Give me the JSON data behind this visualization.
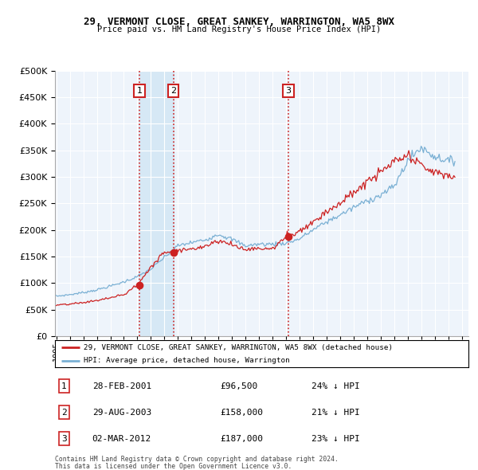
{
  "title": "29, VERMONT CLOSE, GREAT SANKEY, WARRINGTON, WA5 8WX",
  "subtitle": "Price paid vs. HM Land Registry's House Price Index (HPI)",
  "legend_line1": "29, VERMONT CLOSE, GREAT SANKEY, WARRINGTON, WA5 8WX (detached house)",
  "legend_line2": "HPI: Average price, detached house, Warrington",
  "footer1": "Contains HM Land Registry data © Crown copyright and database right 2024.",
  "footer2": "This data is licensed under the Open Government Licence v3.0.",
  "purchases": [
    {
      "num": 1,
      "date": "28-FEB-2001",
      "price": "£96,500",
      "year": 2001.16,
      "price_val": 96500,
      "pct": "24% ↓ HPI"
    },
    {
      "num": 2,
      "date": "29-AUG-2003",
      "price": "£158,000",
      "year": 2003.66,
      "price_val": 158000,
      "pct": "21% ↓ HPI"
    },
    {
      "num": 3,
      "date": "02-MAR-2012",
      "price": "£187,000",
      "year": 2012.17,
      "price_val": 187000,
      "pct": "23% ↓ HPI"
    }
  ],
  "hpi_color": "#7ab0d4",
  "price_color": "#cc2222",
  "vline_color": "#cc2222",
  "plot_bg": "#eef4fb",
  "shade_color": "#d6e8f5",
  "ylim": [
    0,
    500000
  ],
  "xlim_left": 1994.9,
  "xlim_right": 2025.5
}
